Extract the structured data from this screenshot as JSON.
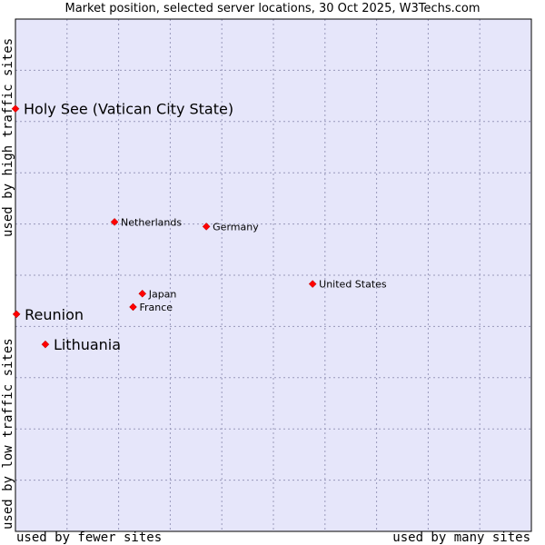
{
  "chart_data": {
    "type": "scatter",
    "title": "Market position, selected server locations, 30 Oct 2025, W3Techs.com",
    "xlabel_left": "used by fewer sites",
    "xlabel_right": "used by many sites",
    "ylabel_top": "used by high traffic sites",
    "ylabel_bottom": "used by low traffic sites",
    "xlim": [
      0,
      100
    ],
    "ylim": [
      0,
      100
    ],
    "grid": true,
    "points": [
      {
        "label": "Holy See (Vatican City State)",
        "x": 0.0,
        "y": 82.5,
        "highlight": true
      },
      {
        "label": "Reunion",
        "x": 0.2,
        "y": 42.4,
        "highlight": true
      },
      {
        "label": "Lithuania",
        "x": 5.8,
        "y": 36.5,
        "highlight": true
      },
      {
        "label": "Netherlands",
        "x": 19.2,
        "y": 60.4,
        "highlight": false
      },
      {
        "label": "Germany",
        "x": 37.0,
        "y": 59.5,
        "highlight": false
      },
      {
        "label": "Japan",
        "x": 24.6,
        "y": 46.4,
        "highlight": false
      },
      {
        "label": "France",
        "x": 22.8,
        "y": 43.8,
        "highlight": false
      },
      {
        "label": "United States",
        "x": 57.6,
        "y": 48.3,
        "highlight": false
      }
    ]
  },
  "colors": {
    "plot_bg": "#e6e6fa",
    "marker": "#ff0000",
    "grid": "#9999bb"
  }
}
